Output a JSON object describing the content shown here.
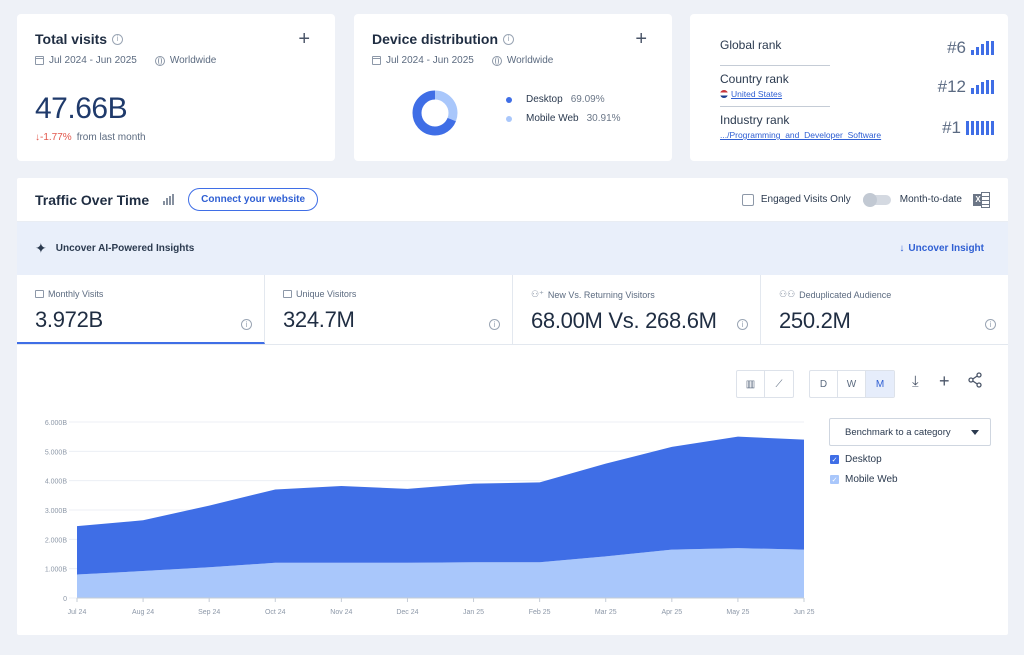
{
  "colors": {
    "accent": "#3f6ee6",
    "desktop": "#3f6ee6",
    "mobile": "#a9c7fb",
    "negative": "#e2574c",
    "page_bg": "#eef1f7"
  },
  "total_visits": {
    "title": "Total visits",
    "date_range": "Jul 2024 - Jun 2025",
    "region": "Worldwide",
    "value": "47.66B",
    "change": "-1.77%",
    "change_label": "from last month"
  },
  "device_distribution": {
    "title": "Device distribution",
    "date_range": "Jul 2024 - Jun 2025",
    "region": "Worldwide",
    "items": [
      {
        "label": "Desktop",
        "pct": "69.09%",
        "value": 69.09,
        "color": "#3f6ee6"
      },
      {
        "label": "Mobile Web",
        "pct": "30.91%",
        "value": 30.91,
        "color": "#a9c7fb"
      }
    ]
  },
  "ranks": {
    "global": {
      "label": "Global rank",
      "value": "#6"
    },
    "country": {
      "label": "Country rank",
      "link": "United States",
      "value": "#12"
    },
    "industry": {
      "label": "Industry rank",
      "link": ".../Programming_and_Developer_Software",
      "value": "#1"
    }
  },
  "traffic": {
    "title": "Traffic Over Time",
    "connect_label": "Connect your website",
    "engaged_label": "Engaged Visits Only",
    "mtd_label": "Month-to-date",
    "insights_label": "Uncover AI-Powered Insights",
    "uncover_label": "Uncover Insight",
    "metrics": [
      {
        "label": "Monthly Visits",
        "value": "3.972B"
      },
      {
        "label": "Unique Visitors",
        "value": "324.7M"
      },
      {
        "label": "New Vs. Returning Visitors",
        "value": "68.00M Vs. 268.6M"
      },
      {
        "label": "Deduplicated Audience",
        "value": "250.2M"
      }
    ],
    "granularity": [
      "D",
      "W",
      "M"
    ],
    "selected_granularity": "M",
    "benchmark_label": "Benchmark to a category",
    "legend": [
      "Desktop",
      "Mobile Web"
    ]
  },
  "chart_data": {
    "type": "area",
    "stacked": true,
    "categories": [
      "Jul 24",
      "Aug 24",
      "Sep 24",
      "Oct 24",
      "Nov 24",
      "Dec 24",
      "Jan 25",
      "Feb 25",
      "Mar 25",
      "Apr 25",
      "May 25",
      "Jun 25"
    ],
    "y_ticks": [
      "0",
      "1.000B",
      "2.000B",
      "3.000B",
      "4.000B",
      "5.000B",
      "6.000B"
    ],
    "ylim": [
      0,
      6
    ],
    "y_unit": "B",
    "grid": true,
    "series": [
      {
        "name": "Mobile Web",
        "color": "#a9c7fb",
        "values": [
          0.8,
          0.92,
          1.05,
          1.2,
          1.2,
          1.2,
          1.22,
          1.22,
          1.42,
          1.65,
          1.7,
          1.65
        ]
      },
      {
        "name": "Desktop",
        "color": "#3f6ee6",
        "values": [
          1.65,
          1.73,
          2.1,
          2.5,
          2.62,
          2.52,
          2.68,
          2.72,
          3.16,
          3.5,
          3.8,
          3.75
        ]
      }
    ]
  }
}
